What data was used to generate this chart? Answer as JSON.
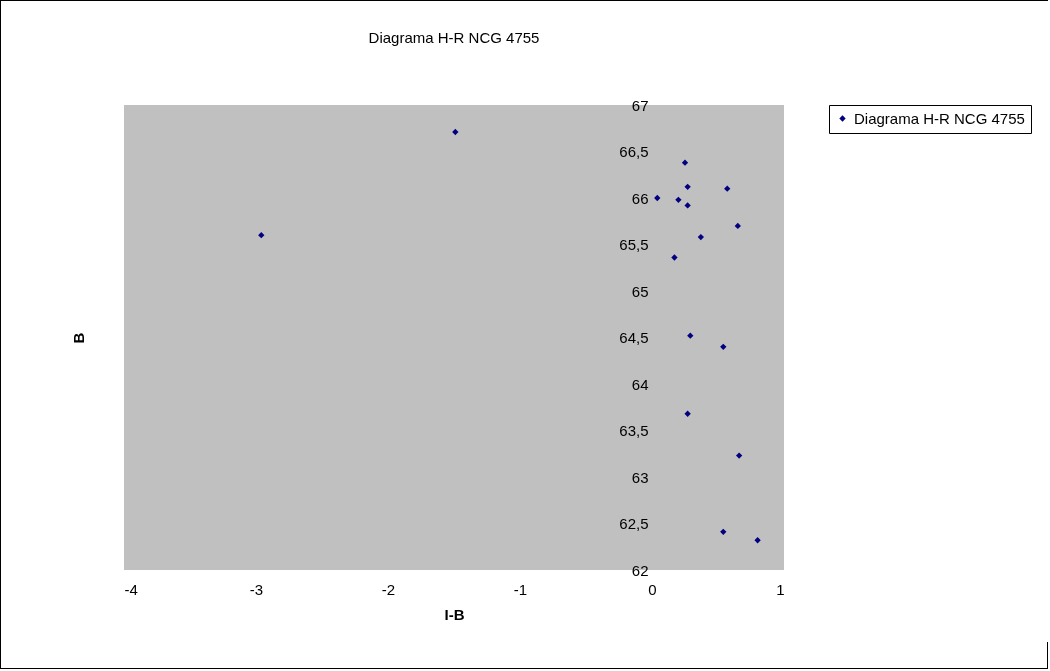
{
  "chart_data": {
    "type": "scatter",
    "title": "Diagrama H-R NCG 4755",
    "xlabel": "I-B",
    "ylabel": "B",
    "series": [
      {
        "name": "Diagrama H-R NCG 4755",
        "color": "#000080",
        "x": [
          -1.49,
          -2.96,
          0.25,
          0.27,
          0.57,
          0.04,
          0.2,
          0.27,
          0.65,
          0.37,
          0.17,
          0.29,
          0.54,
          0.27,
          0.66,
          0.54,
          0.8
        ],
        "values": [
          66.71,
          65.6,
          66.38,
          66.12,
          66.1,
          66.0,
          65.98,
          65.92,
          65.7,
          65.58,
          65.36,
          64.52,
          64.4,
          63.68,
          63.23,
          62.41,
          62.32
        ]
      }
    ],
    "xlim": [
      -4,
      1
    ],
    "xticks": [
      -4,
      -3,
      -2,
      -1,
      0,
      1
    ],
    "ylim": [
      62,
      67
    ],
    "yticks": [
      {
        "value": 62,
        "label": "62"
      },
      {
        "value": 62.5,
        "label": "62,5"
      },
      {
        "value": 63,
        "label": "63"
      },
      {
        "value": 63.5,
        "label": "63,5"
      },
      {
        "value": 64,
        "label": "64"
      },
      {
        "value": 64.5,
        "label": "64,5"
      },
      {
        "value": 65,
        "label": "65"
      },
      {
        "value": 65.5,
        "label": "65,5"
      },
      {
        "value": 66,
        "label": "66"
      },
      {
        "value": 66.5,
        "label": "66,5"
      },
      {
        "value": 67,
        "label": "67"
      }
    ],
    "grid": false,
    "legend": "right",
    "marker": "diamond"
  }
}
